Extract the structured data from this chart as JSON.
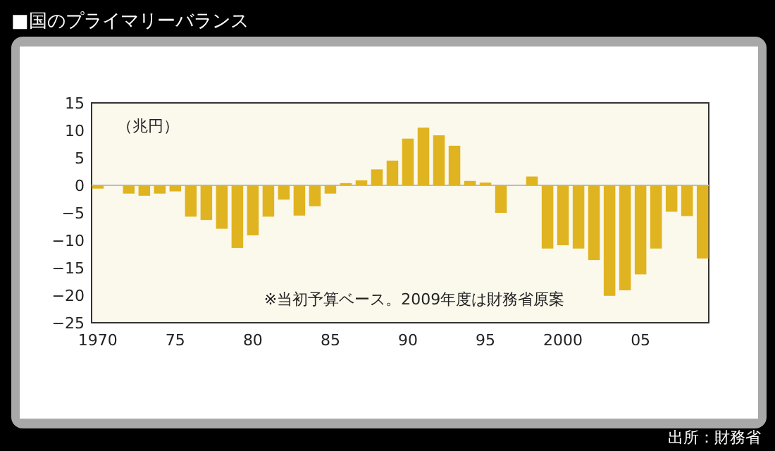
{
  "chart_data": {
    "type": "bar",
    "title": "■国のプライマリーバランス",
    "ylabel": "（兆円）",
    "annotations": [
      "※当初予算ベース。2009年度は財務省原案",
      "出所：財務省"
    ],
    "x": [
      1970,
      1971,
      1972,
      1973,
      1974,
      1975,
      1976,
      1977,
      1978,
      1979,
      1980,
      1981,
      1982,
      1983,
      1984,
      1985,
      1986,
      1987,
      1988,
      1989,
      1990,
      1991,
      1992,
      1993,
      1994,
      1995,
      1996,
      1997,
      1998,
      1999,
      2000,
      2001,
      2002,
      2003,
      2004,
      2005,
      2006,
      2007,
      2008,
      2009
    ],
    "values": [
      -0.6,
      0,
      -1.5,
      -1.9,
      -1.5,
      -1.1,
      -5.7,
      -6.3,
      -7.9,
      -11.4,
      -9.1,
      -5.7,
      -2.6,
      -5.5,
      -3.8,
      -1.5,
      0.4,
      0.9,
      2.9,
      4.5,
      8.5,
      10.5,
      9.1,
      7.2,
      0.8,
      0.5,
      -5.0,
      0,
      1.6,
      -11.5,
      -10.9,
      -11.5,
      -13.6,
      -20.1,
      -19.1,
      -16.2,
      -11.5,
      -4.8,
      -5.6,
      -13.3
    ],
    "color": "#e0b420",
    "xlim": [
      1969.6,
      2009.4
    ],
    "xticks": [
      1970,
      {
        "value": 1975,
        "label": "75"
      },
      {
        "value": 1980,
        "label": "80"
      },
      {
        "value": 1985,
        "label": "85"
      },
      {
        "value": 1990,
        "label": "90"
      },
      {
        "value": 1995,
        "label": "95"
      },
      2000,
      {
        "value": 2005,
        "label": "05"
      }
    ],
    "ylim": [
      -25,
      15
    ],
    "yticks": [
      -25,
      -20,
      -15,
      -10,
      -5,
      0,
      5,
      10,
      15
    ]
  }
}
